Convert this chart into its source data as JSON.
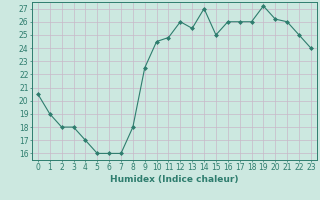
{
  "xlabel": "Humidex (Indice chaleur)",
  "x": [
    0,
    1,
    2,
    3,
    4,
    5,
    6,
    7,
    8,
    9,
    10,
    11,
    12,
    13,
    14,
    15,
    16,
    17,
    18,
    19,
    20,
    21,
    22,
    23
  ],
  "y": [
    20.5,
    19.0,
    18.0,
    18.0,
    17.0,
    16.0,
    16.0,
    16.0,
    18.0,
    22.5,
    24.5,
    24.8,
    26.0,
    25.5,
    27.0,
    25.0,
    26.0,
    26.0,
    26.0,
    27.2,
    26.2,
    26.0,
    25.0,
    24.0
  ],
  "line_color": "#2e7d6e",
  "marker": "D",
  "marker_size": 2.0,
  "bg_color": "#cce8e0",
  "grid_color": "#c8b8c8",
  "ylim_min": 15.5,
  "ylim_max": 27.5,
  "xlim_min": -0.5,
  "xlim_max": 23.5,
  "yticks": [
    16,
    17,
    18,
    19,
    20,
    21,
    22,
    23,
    24,
    25,
    26,
    27
  ],
  "xticks": [
    0,
    1,
    2,
    3,
    4,
    5,
    6,
    7,
    8,
    9,
    10,
    11,
    12,
    13,
    14,
    15,
    16,
    17,
    18,
    19,
    20,
    21,
    22,
    23
  ],
  "tick_color": "#2e7d6e",
  "label_color": "#2e7d6e",
  "axis_color": "#2e7d6e",
  "font_size_tick": 5.5,
  "font_size_label": 6.5
}
